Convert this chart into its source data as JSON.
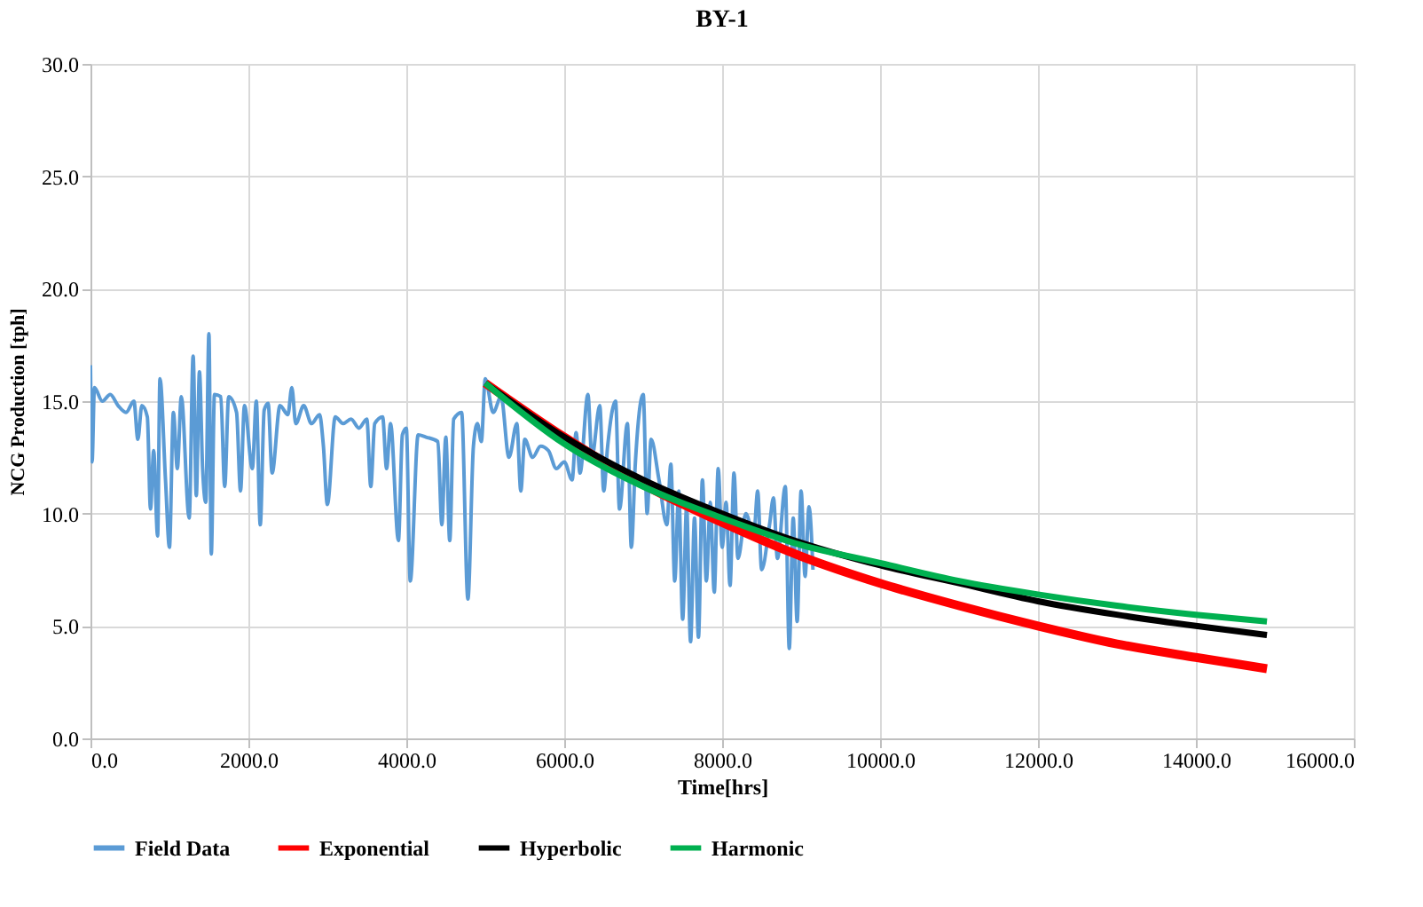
{
  "chart_data": {
    "type": "line",
    "title": "BY-1",
    "xlabel": "Time[hrs]",
    "ylabel": "NCG Production [tph]",
    "xlim": [
      0,
      16000
    ],
    "ylim": [
      0,
      30
    ],
    "xticks": [
      {
        "value": 0,
        "label": "0.0"
      },
      {
        "value": 2000,
        "label": "2000.0"
      },
      {
        "value": 4000,
        "label": "4000.0"
      },
      {
        "value": 6000,
        "label": "6000.0"
      },
      {
        "value": 8000,
        "label": "8000.0"
      },
      {
        "value": 10000,
        "label": "10000.0"
      },
      {
        "value": 12000,
        "label": "12000.0"
      },
      {
        "value": 14000,
        "label": "14000.0"
      },
      {
        "value": 16000,
        "label": "16000.0"
      }
    ],
    "yticks": [
      {
        "value": 0,
        "label": "0.0"
      },
      {
        "value": 5,
        "label": "5.0"
      },
      {
        "value": 10,
        "label": "10.0"
      },
      {
        "value": 15,
        "label": "15.0"
      },
      {
        "value": 20,
        "label": "20.0"
      },
      {
        "value": 25,
        "label": "25.0"
      },
      {
        "value": 30,
        "label": "30.0"
      }
    ],
    "grid": true,
    "legend": "bottom",
    "marker": "none",
    "series": [
      {
        "name": "Field Data",
        "color": "#5b9bd5",
        "x": [
          0,
          20,
          50,
          150,
          250,
          350,
          450,
          550,
          600,
          650,
          720,
          760,
          800,
          850,
          880,
          950,
          1000,
          1050,
          1100,
          1150,
          1250,
          1300,
          1340,
          1380,
          1420,
          1460,
          1500,
          1530,
          1570,
          1650,
          1700,
          1750,
          1850,
          1900,
          1950,
          2050,
          2100,
          2150,
          2200,
          2250,
          2300,
          2400,
          2500,
          2550,
          2600,
          2700,
          2800,
          2900,
          2950,
          3000,
          3100,
          3200,
          3300,
          3400,
          3500,
          3550,
          3600,
          3700,
          3750,
          3800,
          3900,
          3950,
          4000,
          4050,
          4150,
          4250,
          4400,
          4450,
          4500,
          4550,
          4600,
          4700,
          4780,
          4850,
          4900,
          4950,
          5000,
          5100,
          5200,
          5300,
          5400,
          5450,
          5500,
          5600,
          5700,
          5800,
          5900,
          6000,
          6100,
          6150,
          6200,
          6300,
          6350,
          6450,
          6500,
          6550,
          6650,
          6700,
          6800,
          6850,
          6900,
          7000,
          7050,
          7100,
          7200,
          7300,
          7350,
          7400,
          7450,
          7500,
          7550,
          7600,
          7650,
          7700,
          7750,
          7800,
          7850,
          7900,
          7950,
          8000,
          8050,
          8100,
          8150,
          8200,
          8300,
          8400,
          8450,
          8500,
          8600,
          8650,
          8700,
          8800,
          8850,
          8900,
          8950,
          9000,
          9050,
          9100,
          9150
        ],
        "values": [
          16.6,
          12.3,
          15.6,
          15.0,
          15.3,
          14.8,
          14.5,
          15.0,
          13.3,
          14.8,
          14.3,
          10.2,
          12.8,
          9.0,
          16.0,
          11.5,
          8.5,
          14.5,
          12.0,
          15.2,
          9.8,
          17.0,
          10.8,
          16.3,
          12.0,
          10.5,
          18.0,
          8.2,
          15.3,
          15.2,
          11.2,
          15.2,
          14.5,
          11.0,
          14.8,
          12.0,
          15.0,
          9.5,
          14.6,
          14.9,
          11.8,
          14.8,
          14.4,
          15.6,
          14.0,
          14.8,
          14.0,
          14.4,
          13.0,
          10.4,
          14.3,
          14.0,
          14.2,
          13.8,
          14.2,
          11.2,
          14.0,
          14.3,
          12.0,
          14.0,
          8.8,
          13.5,
          13.8,
          7.0,
          13.5,
          13.4,
          13.2,
          9.5,
          13.4,
          8.8,
          14.2,
          14.5,
          6.2,
          13.0,
          14.0,
          13.2,
          16.0,
          14.5,
          15.2,
          12.5,
          14.0,
          11.0,
          13.3,
          12.5,
          13.0,
          12.8,
          12.0,
          12.3,
          11.5,
          13.6,
          11.8,
          15.3,
          12.5,
          14.8,
          11.0,
          13.0,
          15.0,
          10.2,
          14.0,
          8.5,
          12.2,
          15.3,
          10.0,
          13.3,
          11.5,
          9.5,
          12.2,
          7.0,
          11.0,
          5.3,
          10.3,
          4.3,
          9.8,
          4.5,
          11.5,
          7.0,
          10.5,
          6.5,
          12.0,
          8.5,
          10.5,
          6.8,
          11.8,
          8.0,
          10.0,
          9.0,
          11.0,
          7.5,
          9.5,
          10.7,
          8.0,
          11.2,
          4.0,
          9.8,
          5.2,
          11.0,
          7.2,
          10.3,
          7.5
        ]
      },
      {
        "name": "Exponential",
        "color": "#ff0000",
        "x": [
          5000,
          6000,
          7000,
          8000,
          9000,
          10000,
          11000,
          12000,
          13000,
          14000,
          14900
        ],
        "values": [
          15.8,
          13.4,
          11.3,
          9.6,
          8.1,
          6.9,
          5.9,
          5.0,
          4.2,
          3.6,
          3.1
        ]
      },
      {
        "name": "Hyperbolic",
        "color": "#000000",
        "x": [
          5000,
          6000,
          7000,
          8000,
          9000,
          10000,
          11000,
          12000,
          13000,
          14000,
          14900
        ],
        "values": [
          15.8,
          13.4,
          11.5,
          10.0,
          8.7,
          7.7,
          6.9,
          6.1,
          5.5,
          5.0,
          4.6
        ]
      },
      {
        "name": "Harmonic",
        "color": "#00b050",
        "x": [
          5000,
          6000,
          7000,
          8000,
          9000,
          10000,
          11000,
          12000,
          13000,
          14000,
          14900
        ],
        "values": [
          15.8,
          13.1,
          11.2,
          9.8,
          8.6,
          7.8,
          7.0,
          6.4,
          5.9,
          5.5,
          5.2
        ]
      }
    ]
  }
}
